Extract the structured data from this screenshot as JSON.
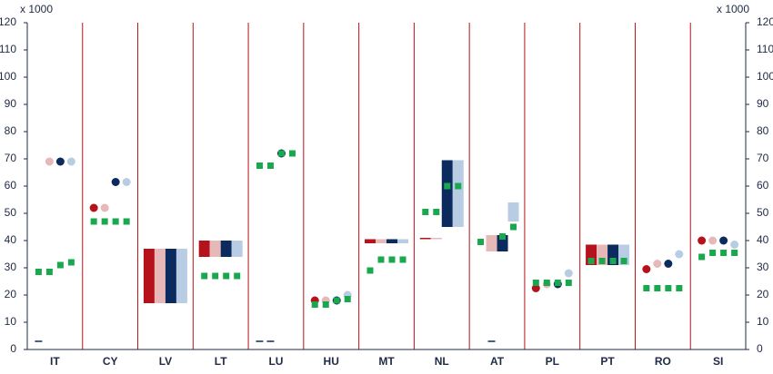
{
  "chart_data": {
    "type": "range",
    "y_unit": "x 1000",
    "categories": [
      "IT",
      "CY",
      "LV",
      "LT",
      "LU",
      "HU",
      "MT",
      "NL",
      "AT",
      "PL",
      "PT",
      "RO",
      "SI"
    ],
    "ylim": [
      0,
      120
    ],
    "yticks": [
      0,
      10,
      20,
      30,
      40,
      50,
      60,
      70,
      80,
      90,
      100,
      110,
      120
    ],
    "separator_color": "#b5121b",
    "series": [
      {
        "color": "#b5121b",
        "low": [
          null,
          52,
          17,
          34,
          null,
          18,
          39,
          40.5,
          null,
          22.5,
          31,
          29.5,
          40
        ],
        "high": [
          null,
          52,
          37,
          40,
          null,
          18,
          40.5,
          41,
          null,
          22.5,
          38.5,
          29.5,
          40
        ]
      },
      {
        "color": "#e6b9b8",
        "low": [
          69,
          52,
          17,
          34,
          null,
          18,
          39,
          40.5,
          36,
          24,
          31,
          31.5,
          40
        ],
        "high": [
          69,
          52,
          37,
          40,
          null,
          18,
          40.5,
          41,
          42,
          24,
          38.5,
          31.5,
          40
        ]
      },
      {
        "color": "#0b2a5e",
        "low": [
          69,
          61.5,
          17,
          34,
          72,
          18,
          39,
          45,
          36,
          24,
          31,
          31.5,
          40
        ],
        "high": [
          69,
          61.5,
          37,
          40,
          72,
          18,
          40.5,
          69.5,
          42,
          24,
          38.5,
          31.5,
          40
        ]
      },
      {
        "color": "#b8cce4",
        "low": [
          69,
          61.5,
          17,
          34,
          null,
          20,
          39,
          45,
          47,
          28,
          31,
          35,
          38.5
        ],
        "high": [
          69,
          61.5,
          37,
          40,
          null,
          20,
          40.5,
          69.5,
          54,
          28,
          38.5,
          35,
          38.5
        ]
      }
    ],
    "markers": {
      "color": "#1aa84f",
      "values": [
        [
          28.5,
          28.5,
          31,
          32
        ],
        [
          47,
          47,
          47,
          47
        ],
        [
          null,
          null,
          null,
          null
        ],
        [
          27,
          27,
          27,
          27
        ],
        [
          67.5,
          67.5,
          72,
          72
        ],
        [
          16.5,
          16.5,
          18,
          18.5
        ],
        [
          29,
          33,
          33,
          33
        ],
        [
          50.5,
          50.5,
          60,
          60
        ],
        [
          39.5,
          null,
          41.5,
          45
        ],
        [
          24.5,
          24.5,
          24.5,
          24.5
        ],
        [
          32.5,
          32.5,
          32.5,
          32.5
        ],
        [
          22.5,
          22.5,
          22.5,
          22.5
        ],
        [
          34,
          35.5,
          35.5,
          35.5
        ]
      ]
    },
    "dashes": {
      "color": "#0b2a5e",
      "values": [
        [
          3,
          null,
          null,
          null
        ],
        [
          null,
          null,
          null,
          null
        ],
        [
          null,
          null,
          null,
          null
        ],
        [
          null,
          null,
          null,
          null
        ],
        [
          3,
          3,
          null,
          null
        ],
        [
          null,
          null,
          null,
          null
        ],
        [
          null,
          null,
          null,
          null
        ],
        [
          null,
          null,
          null,
          null
        ],
        [
          null,
          3,
          null,
          null
        ],
        [
          null,
          null,
          null,
          null
        ],
        [
          null,
          null,
          null,
          null
        ],
        [
          null,
          null,
          null,
          null
        ],
        [
          null,
          null,
          null,
          null
        ]
      ]
    }
  }
}
